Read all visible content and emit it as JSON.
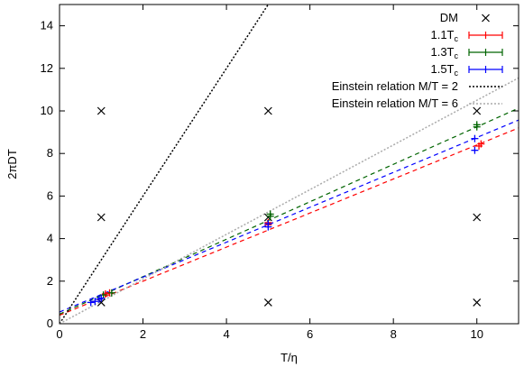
{
  "chart_data": {
    "type": "scatter",
    "xlabel": "T/η",
    "ylabel": "2πDT",
    "xlim": [
      0,
      11
    ],
    "ylim": [
      0,
      15
    ],
    "xticks": [
      0,
      2,
      4,
      6,
      8,
      10
    ],
    "yticks": [
      0,
      2,
      4,
      6,
      8,
      10,
      12,
      14
    ],
    "grid": false,
    "legend_position": "top-right",
    "series": [
      {
        "name": "DM",
        "marker": "x",
        "color": "#000000",
        "points": [
          [
            1,
            1
          ],
          [
            1,
            5
          ],
          [
            1,
            10
          ],
          [
            5,
            1
          ],
          [
            5,
            5
          ],
          [
            5,
            10
          ],
          [
            10,
            1
          ],
          [
            10,
            5
          ],
          [
            10,
            10
          ]
        ]
      },
      {
        "name": "1.1T",
        "name_sub": "c",
        "marker": "plus",
        "color": "#ff0000",
        "points": [
          [
            1.1,
            1.4
          ],
          [
            1.2,
            1.45
          ],
          [
            5.0,
            4.65
          ],
          [
            5.0,
            4.75
          ],
          [
            10.05,
            8.35
          ],
          [
            10.1,
            8.45
          ]
        ],
        "fit": {
          "intercept": 0.4,
          "slope": 0.8
        }
      },
      {
        "name": "1.3T",
        "name_sub": "c",
        "marker": "plus",
        "color": "#006400",
        "points": [
          [
            1.05,
            1.35
          ],
          [
            1.25,
            1.45
          ],
          [
            5.05,
            5.05
          ],
          [
            5.05,
            5.15
          ],
          [
            10.0,
            9.25
          ],
          [
            10.0,
            9.35
          ]
        ],
        "fit": {
          "intercept": 0.45,
          "slope": 0.88
        }
      },
      {
        "name": "1.5T",
        "name_sub": "c",
        "marker": "plus",
        "color": "#0000ff",
        "points": [
          [
            0.75,
            1.0
          ],
          [
            0.85,
            1.05
          ],
          [
            0.95,
            1.15
          ],
          [
            1.0,
            1.2
          ],
          [
            5.0,
            4.55
          ],
          [
            5.0,
            4.7
          ],
          [
            9.95,
            8.15
          ],
          [
            9.95,
            8.7
          ]
        ],
        "fit": {
          "intercept": 0.55,
          "slope": 0.82
        }
      },
      {
        "name": "Einstein relation M/T = 2",
        "style": "dotted-line",
        "color": "#000000",
        "line": {
          "intercept": 0.0,
          "slope": 3.0
        }
      },
      {
        "name": "Einstein relation M/T = 6",
        "style": "dotted-line",
        "color": "#aaaaaa",
        "line": {
          "intercept": 0.0,
          "slope": 1.05
        }
      }
    ]
  }
}
